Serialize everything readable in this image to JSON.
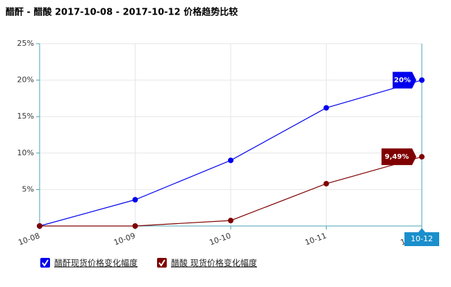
{
  "chart_data": {
    "type": "line",
    "title": "醋酐 - 醋酸 2017-10-08 - 2017-10-12 价格趋势比较",
    "categories": [
      "10-08",
      "10-09",
      "10-10",
      "10-11",
      "10-12"
    ],
    "series": [
      {
        "name": "醋酐现货价格变化幅度",
        "color": "#0000ee",
        "values": [
          0,
          3.6,
          9.0,
          16.2,
          20
        ],
        "value_labels": [
          null,
          null,
          null,
          null,
          "20%"
        ]
      },
      {
        "name": "醋酸 现货价格变化幅度",
        "color": "#7f0000",
        "values": [
          0,
          0,
          0.75,
          5.8,
          9.49
        ],
        "value_labels": [
          null,
          null,
          null,
          null,
          "9,49%"
        ]
      }
    ],
    "ylim": [
      0,
      25
    ],
    "yticks": [
      {
        "value": 5,
        "label": "5%"
      },
      {
        "value": 10,
        "label": "10%"
      },
      {
        "value": 15,
        "label": "15%"
      },
      {
        "value": 20,
        "label": "20%"
      },
      {
        "value": 25,
        "label": "25%"
      }
    ],
    "grid": true
  }
}
